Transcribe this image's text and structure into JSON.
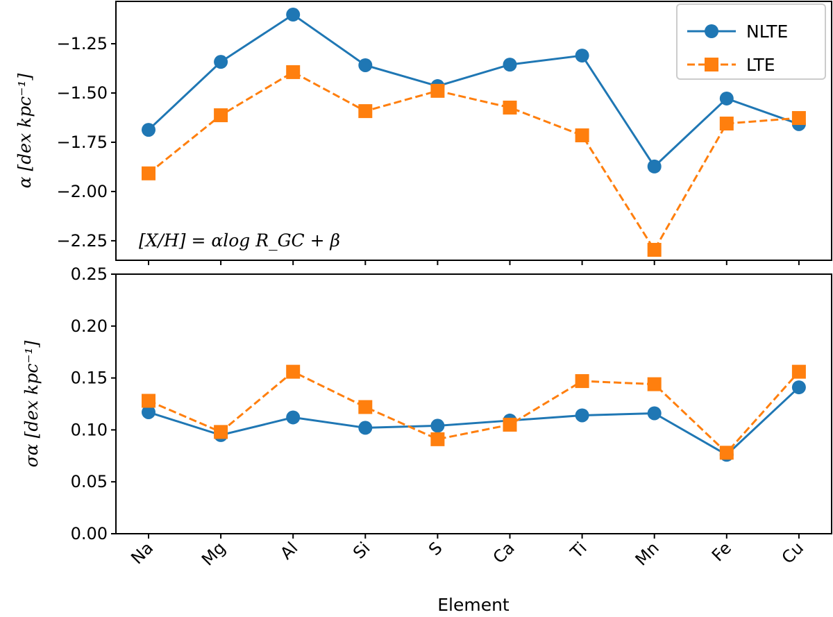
{
  "chart_data": [
    {
      "type": "line",
      "panel": "top",
      "categories": [
        "Na",
        "Mg",
        "Al",
        "Si",
        "S",
        "Ca",
        "Ti",
        "Mn",
        "Fe",
        "Cu"
      ],
      "ylabel": "α [dex kpc⁻¹]",
      "ylim": [
        -2.349,
        -1.035
      ],
      "yticks": [
        "−1.25",
        "−1.50",
        "−1.75",
        "−2.00",
        "−2.25"
      ],
      "ytick_values": [
        -1.25,
        -1.5,
        -1.75,
        -2.0,
        -2.25
      ],
      "annotation": "[X/H] = αlog R_GC + β",
      "legend": "top-right",
      "grid": false,
      "series": [
        {
          "name": "NLTE",
          "color": "#1f77b4",
          "marker": "circle",
          "linestyle": "solid",
          "values": [
            -1.687,
            -1.342,
            -1.102,
            -1.359,
            -1.465,
            -1.356,
            -1.31,
            -1.873,
            -1.528,
            -1.658
          ]
        },
        {
          "name": "LTE",
          "color": "#ff7f0e",
          "marker": "square",
          "linestyle": "dashed",
          "values": [
            -1.908,
            -1.613,
            -1.394,
            -1.592,
            -1.489,
            -1.574,
            -1.715,
            -2.296,
            -1.655,
            -1.627
          ]
        }
      ]
    },
    {
      "type": "line",
      "panel": "bottom",
      "categories": [
        "Na",
        "Mg",
        "Al",
        "Si",
        "S",
        "Ca",
        "Ti",
        "Mn",
        "Fe",
        "Cu"
      ],
      "xlabel": "Element",
      "ylabel": "σα [dex kpc⁻¹]",
      "ylim": [
        0,
        0.25
      ],
      "yticks": [
        "0.00",
        "0.05",
        "0.10",
        "0.15",
        "0.20",
        "0.25"
      ],
      "ytick_values": [
        0,
        0.05,
        0.1,
        0.15,
        0.2,
        0.25
      ],
      "grid": false,
      "series": [
        {
          "color": "#1f77b4",
          "marker": "circle",
          "linestyle": "solid",
          "values": [
            0.117,
            0.095,
            0.112,
            0.102,
            0.104,
            0.109,
            0.114,
            0.116,
            0.076,
            0.141
          ]
        },
        {
          "color": "#ff7f0e",
          "marker": "square",
          "linestyle": "dashed",
          "values": [
            0.128,
            0.098,
            0.156,
            0.122,
            0.091,
            0.105,
            0.147,
            0.144,
            0.078,
            0.156
          ]
        }
      ]
    }
  ]
}
